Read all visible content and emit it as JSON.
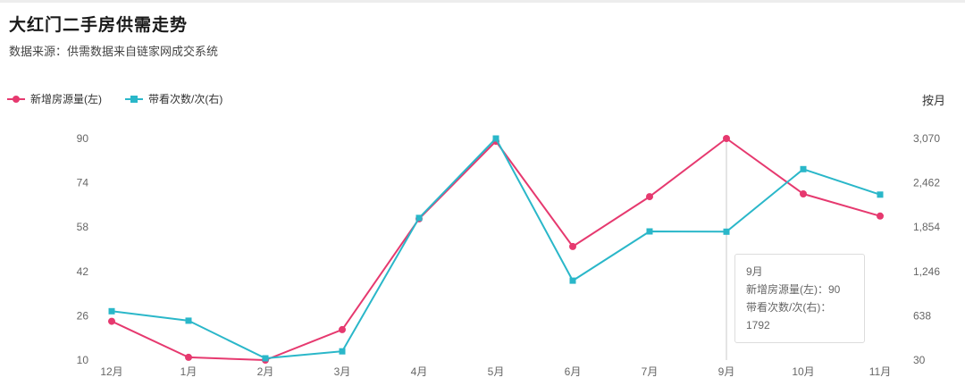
{
  "header": {
    "title": "大红门二手房供需走势",
    "subtitle": "数据来源：供需数据来自链家网成交系统",
    "period_label": "按月"
  },
  "colors": {
    "pink": "#e6396f",
    "cyan": "#2ab7c9",
    "axis_text": "#666666",
    "highlight_line": "#c8c8c8"
  },
  "tooltip": {
    "title": "9月",
    "line1": "新增房源量(左)：90",
    "line2": "带看次数/次(右)：1792"
  },
  "chart_data": {
    "type": "line",
    "categories": [
      "12月",
      "1月",
      "2月",
      "3月",
      "4月",
      "5月",
      "6月",
      "7月",
      "9月",
      "10月",
      "11月"
    ],
    "series": [
      {
        "name": "新增房源量(左)",
        "axis": "left",
        "marker": "circle",
        "color": "#e6396f",
        "values": [
          24,
          11,
          10,
          21,
          61,
          89,
          51,
          69,
          90,
          70,
          62
        ]
      },
      {
        "name": "带看次数/次(右)",
        "axis": "right",
        "marker": "square",
        "color": "#2ab7c9",
        "values": [
          700,
          570,
          55,
          150,
          1980,
          3070,
          1120,
          1795,
          1792,
          2650,
          2300
        ]
      }
    ],
    "left_axis": {
      "min": 10,
      "max": 90,
      "tick_labels": [
        "10",
        "26",
        "42",
        "58",
        "74",
        "90"
      ]
    },
    "right_axis": {
      "min": 30,
      "max": 3070,
      "tick_labels": [
        "30",
        "638",
        "1,246",
        "1,854",
        "2,462",
        "3,070"
      ]
    },
    "highlight": {
      "category": "9月",
      "index": 8
    },
    "legend_position": "top-left",
    "grid": false
  }
}
